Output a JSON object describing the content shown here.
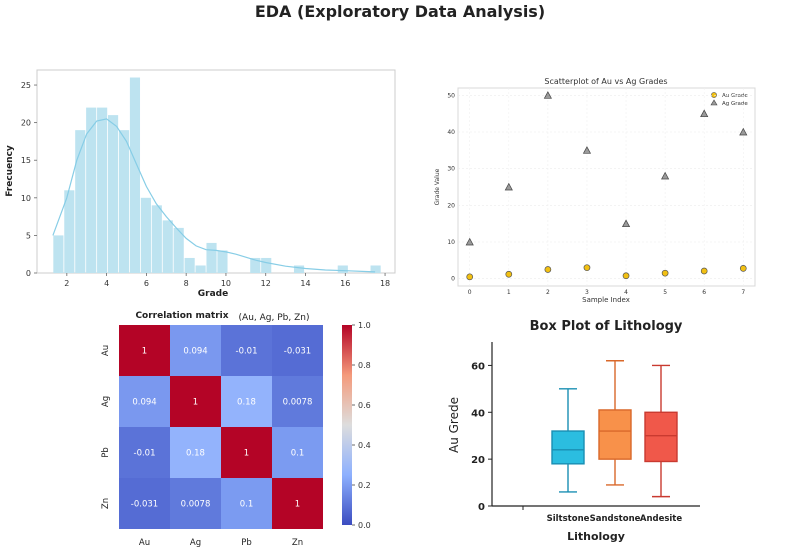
{
  "title": "EDA (Exploratory Data Analysis)",
  "chart_data": [
    {
      "type": "bar",
      "subtype": "histogram with KDE",
      "title": "",
      "xlabel": "Grade",
      "ylabel": "Frecuency",
      "xlim": [
        0.5,
        18.5
      ],
      "ylim": [
        0,
        27
      ],
      "xticks": [
        2,
        4,
        6,
        8,
        10,
        12,
        14,
        16,
        18
      ],
      "yticks": [
        0,
        5,
        10,
        15,
        20,
        25
      ],
      "bin_edges": [
        1.3,
        1.85,
        2.4,
        2.95,
        3.5,
        4.05,
        4.6,
        5.15,
        5.7,
        6.25,
        6.8,
        7.35,
        7.9,
        8.45,
        9.0,
        9.55,
        10.1,
        10.65,
        11.2,
        11.75,
        12.3,
        12.85,
        13.4,
        13.95,
        14.5,
        15.05,
        15.6,
        16.15,
        16.7,
        17.25,
        17.8
      ],
      "counts": [
        5,
        11,
        19,
        22,
        22,
        21,
        19,
        26,
        10,
        9,
        7,
        6,
        2,
        1,
        4,
        3,
        0,
        0,
        2,
        2,
        0,
        0,
        1,
        0,
        0,
        0,
        1,
        0,
        0,
        1
      ],
      "kde": {
        "x": [
          1.3,
          2.0,
          2.5,
          3.0,
          3.5,
          4.0,
          4.5,
          5.0,
          5.5,
          6.0,
          6.5,
          7.0,
          7.5,
          8.0,
          8.5,
          9.0,
          9.5,
          10.0,
          10.5,
          11.0,
          11.5,
          12.0,
          13.0,
          14.0,
          15.0,
          16.0,
          17.0,
          17.5
        ],
        "y": [
          5,
          10,
          15,
          18.5,
          20.2,
          20.5,
          19.5,
          17.5,
          14.5,
          11.5,
          9.2,
          7.5,
          6.0,
          4.6,
          3.6,
          3.1,
          3.0,
          2.8,
          2.5,
          2.1,
          1.7,
          1.4,
          0.9,
          0.6,
          0.4,
          0.3,
          0.2,
          0.15
        ]
      },
      "colors": {
        "bar": "#bde3f0",
        "kde": "#87cde6"
      }
    },
    {
      "type": "scatter",
      "title": "Scatterplot of Au vs Ag Grades",
      "xlabel": "Sample Index",
      "ylabel": "Grade Value",
      "xlim": [
        -0.3,
        7.3
      ],
      "ylim": [
        -2,
        52
      ],
      "xticks": [
        0,
        1,
        2,
        3,
        4,
        5,
        6,
        7
      ],
      "yticks": [
        0,
        10,
        20,
        30,
        40,
        50
      ],
      "grid": true,
      "legend_position": "top-right",
      "series": [
        {
          "name": "Au Grade",
          "marker": "circle",
          "color": "#f2c012",
          "x": [
            0,
            1,
            2,
            3,
            4,
            5,
            6,
            7
          ],
          "y": [
            0.5,
            1.2,
            2.5,
            3.0,
            0.8,
            1.5,
            2.1,
            2.8
          ]
        },
        {
          "name": "Ag Grade",
          "marker": "triangle",
          "color": "#9a9a9a",
          "x": [
            0,
            1,
            2,
            3,
            4,
            5,
            6,
            7
          ],
          "y": [
            10,
            25,
            50,
            35,
            15,
            28,
            45,
            40
          ]
        }
      ]
    },
    {
      "type": "heatmap",
      "title": "Correlation matrix",
      "subtitle": "(Au, Ag, Pb, Zn)",
      "labels": [
        "Au",
        "Ag",
        "Pb",
        "Zn"
      ],
      "values": [
        [
          1,
          0.094,
          -0.01,
          -0.031
        ],
        [
          0.094,
          1,
          0.18,
          0.0078
        ],
        [
          -0.01,
          0.18,
          1,
          0.1
        ],
        [
          -0.031,
          0.0078,
          0.1,
          1
        ]
      ],
      "cell_text": [
        [
          "1",
          "0.094",
          "-0.01",
          "-0.031"
        ],
        [
          "0.094",
          "1",
          "0.18",
          "0.0078"
        ],
        [
          "-0.01",
          "0.18",
          "1",
          "0.1"
        ],
        [
          "-0.031",
          "0.0078",
          "0.1",
          "1"
        ]
      ],
      "colorbar": {
        "min": 0.0,
        "max": 1.0,
        "ticks": [
          "0.0",
          "0.2",
          "0.4",
          "0.6",
          "0.8",
          "1.0"
        ]
      },
      "colormap": "coolwarm"
    },
    {
      "type": "box",
      "title": "Box Plot of Lithology",
      "xlabel": "Lithology",
      "ylabel": "Au Grede",
      "ylim": [
        0,
        70
      ],
      "yticks": [
        0,
        20,
        40,
        60
      ],
      "categories": [
        "Siltstone",
        "Sandstone",
        "Andesite"
      ],
      "boxes": [
        {
          "category": "Siltstone",
          "min": 6,
          "q1": 18,
          "median": 24,
          "q3": 32,
          "max": 50,
          "fill": "#2bbde0",
          "line": "#1a8fb3"
        },
        {
          "category": "Sandstone",
          "min": 9,
          "q1": 20,
          "median": 32,
          "q3": 41,
          "max": 62,
          "fill": "#f8914a",
          "line": "#d9682a"
        },
        {
          "category": "Andesite",
          "min": 4,
          "q1": 19,
          "median": 30,
          "q3": 40,
          "max": 60,
          "fill": "#f0584a",
          "line": "#c93a30"
        }
      ]
    }
  ]
}
